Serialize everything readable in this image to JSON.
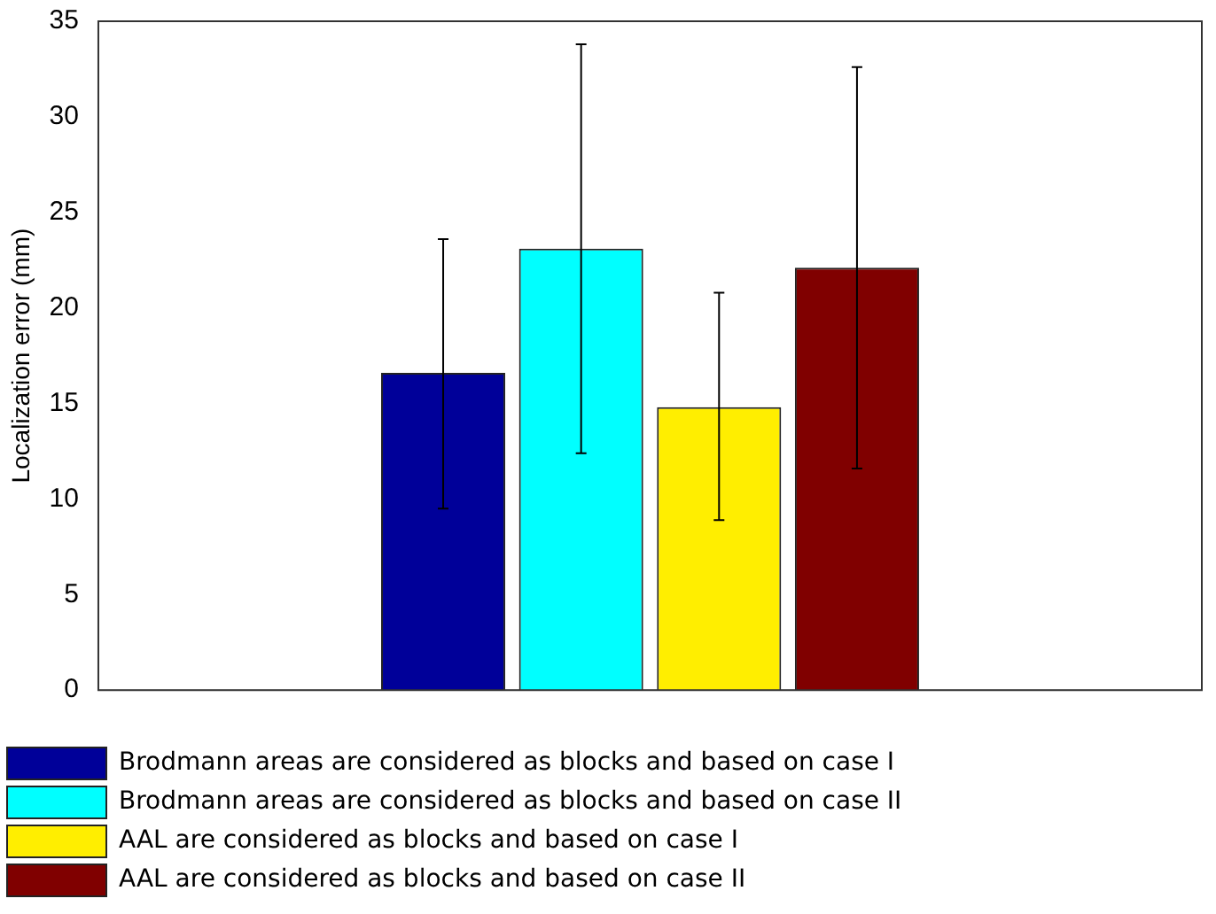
{
  "chart_data": {
    "type": "bar",
    "ylabel": "Localization error (mm)",
    "categories": [
      null
    ],
    "series": [
      {
        "name": "Brodmann areas are considered as blocks and based on case I",
        "color": "#000099",
        "values": [
          16.6
        ],
        "errors": [
          [
            9.5,
            23.6
          ]
        ]
      },
      {
        "name": "Brodmann areas are considered as blocks and based on case II",
        "color": "#00ffff",
        "values": [
          23.1
        ],
        "errors": [
          [
            12.4,
            33.8
          ]
        ]
      },
      {
        "name": "AAL are considered as blocks and based on case I",
        "color": "#ffee00",
        "values": [
          14.8
        ],
        "errors": [
          [
            8.9,
            20.8
          ]
        ]
      },
      {
        "name": "AAL are considered as blocks and based on case II",
        "color": "#800000",
        "values": [
          22.1
        ],
        "errors": [
          [
            11.6,
            32.6
          ]
        ]
      }
    ],
    "ylim": [
      0,
      35
    ],
    "yticks": [
      0,
      5,
      10,
      15,
      20,
      25,
      30,
      35
    ],
    "grid": false,
    "legend": "bottom"
  }
}
